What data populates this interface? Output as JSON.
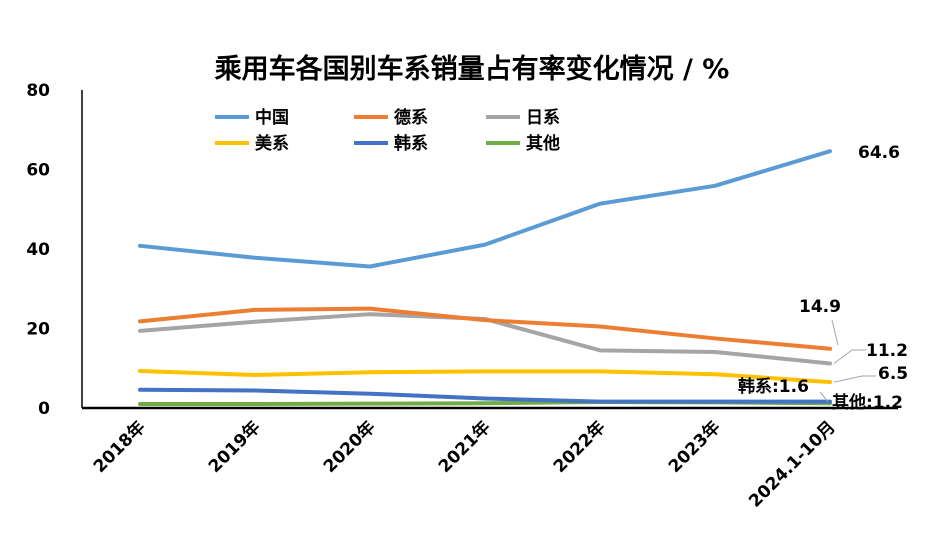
{
  "chart_data": {
    "type": "line",
    "title": "乘用车各国别车系销量占有率变化情况 / %",
    "xlabel": "",
    "ylabel": "",
    "ylim": [
      0,
      80
    ],
    "yticks": [
      0,
      20,
      40,
      60,
      80
    ],
    "categories": [
      "2018年",
      "2019年",
      "2020年",
      "2021年",
      "2022年",
      "2023年",
      "2024.1-10月"
    ],
    "legend_position": "top-left",
    "grid": false,
    "series": [
      {
        "name": "中国",
        "color": "#5b9bd5",
        "values": [
          40.8,
          37.8,
          35.6,
          41.1,
          51.4,
          55.9,
          64.6
        ]
      },
      {
        "name": "德系",
        "color": "#ed7d31",
        "values": [
          21.8,
          24.7,
          25.0,
          22.1,
          20.5,
          17.5,
          14.9
        ]
      },
      {
        "name": "日系",
        "color": "#a5a5a5",
        "values": [
          19.4,
          21.7,
          23.6,
          22.4,
          14.5,
          14.1,
          11.2
        ]
      },
      {
        "name": "美系",
        "color": "#ffc000",
        "values": [
          9.3,
          8.3,
          9.0,
          9.2,
          9.2,
          8.5,
          6.5
        ]
      },
      {
        "name": "韩系",
        "color": "#4472c4",
        "values": [
          4.6,
          4.4,
          3.6,
          2.4,
          1.6,
          1.6,
          1.6
        ]
      },
      {
        "name": "其他",
        "color": "#70ad47",
        "values": [
          1.0,
          1.0,
          1.1,
          1.2,
          1.5,
          1.4,
          1.2
        ]
      }
    ],
    "end_labels": [
      "64.6",
      "14.9",
      "11.2",
      "6.5",
      "韩系:1.6",
      "其他:1.2"
    ]
  }
}
